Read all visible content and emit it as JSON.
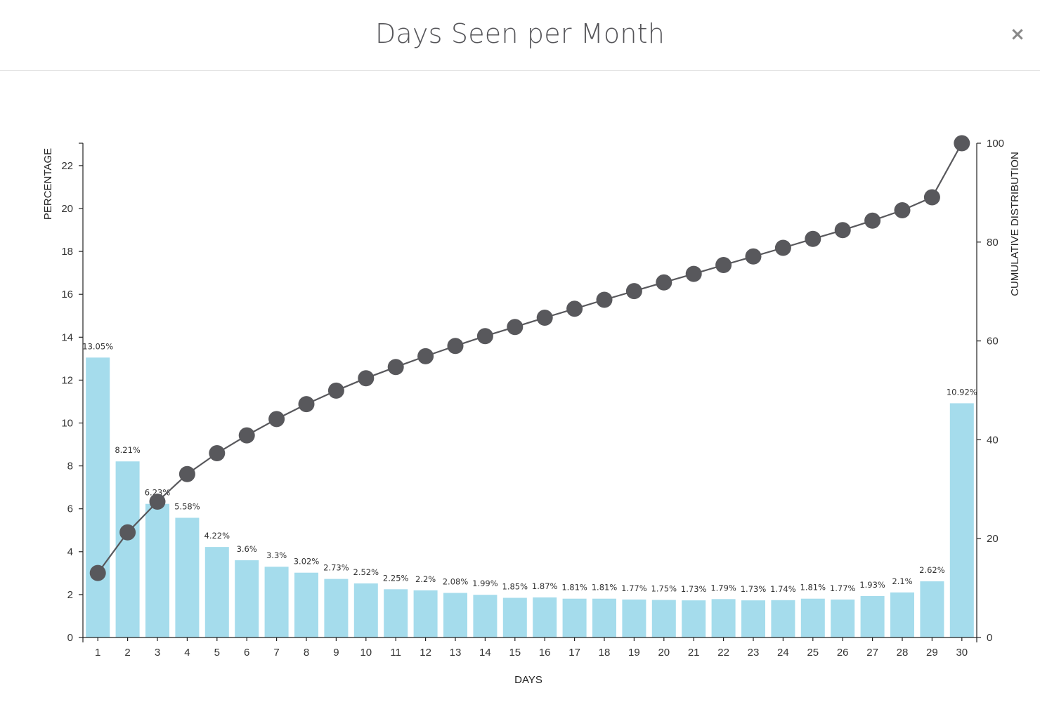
{
  "modal": {
    "title": "Days Seen per Month",
    "close_label": "×"
  },
  "chart_data": {
    "type": "bar",
    "categories": [
      "1",
      "2",
      "3",
      "4",
      "5",
      "6",
      "7",
      "8",
      "9",
      "10",
      "11",
      "12",
      "13",
      "14",
      "15",
      "16",
      "17",
      "18",
      "19",
      "20",
      "21",
      "22",
      "23",
      "24",
      "25",
      "26",
      "27",
      "28",
      "29",
      "30"
    ],
    "values": [
      13.05,
      8.21,
      6.23,
      5.58,
      4.22,
      3.6,
      3.3,
      3.02,
      2.73,
      2.52,
      2.25,
      2.2,
      2.08,
      1.99,
      1.85,
      1.87,
      1.81,
      1.81,
      1.77,
      1.75,
      1.73,
      1.79,
      1.73,
      1.74,
      1.81,
      1.77,
      1.93,
      2.1,
      2.62,
      10.92
    ],
    "labels": [
      "13.05%",
      "8.21%",
      "6.23%",
      "5.58%",
      "4.22%",
      "3.6%",
      "3.3%",
      "3.02%",
      "2.73%",
      "2.52%",
      "2.25%",
      "2.2%",
      "2.08%",
      "1.99%",
      "1.85%",
      "1.87%",
      "1.81%",
      "1.81%",
      "1.77%",
      "1.75%",
      "1.73%",
      "1.79%",
      "1.73%",
      "1.74%",
      "1.81%",
      "1.77%",
      "1.93%",
      "2.1%",
      "2.62%",
      "10.92%"
    ],
    "cumulative": [
      13.05,
      21.26,
      27.49,
      33.07,
      37.29,
      40.89,
      44.19,
      47.21,
      49.94,
      52.46,
      54.71,
      56.91,
      58.99,
      60.98,
      62.83,
      64.7,
      66.51,
      68.32,
      70.09,
      71.84,
      73.57,
      75.36,
      77.09,
      78.83,
      80.64,
      82.41,
      84.34,
      86.44,
      89.06,
      100.0
    ],
    "xlabel": "DAYS",
    "ylabel": "PERCENTAGE",
    "y2label": "CUMULATIVE DISTRIBUTION",
    "ylim": [
      0,
      23
    ],
    "y2lim": [
      0,
      100
    ],
    "yticks": [
      0,
      2,
      4,
      6,
      8,
      10,
      12,
      14,
      16,
      18,
      20,
      22
    ],
    "y2ticks": [
      0,
      20,
      40,
      60,
      80,
      100
    ],
    "bar_color": "#a5dcec",
    "line_color": "#58585c"
  }
}
